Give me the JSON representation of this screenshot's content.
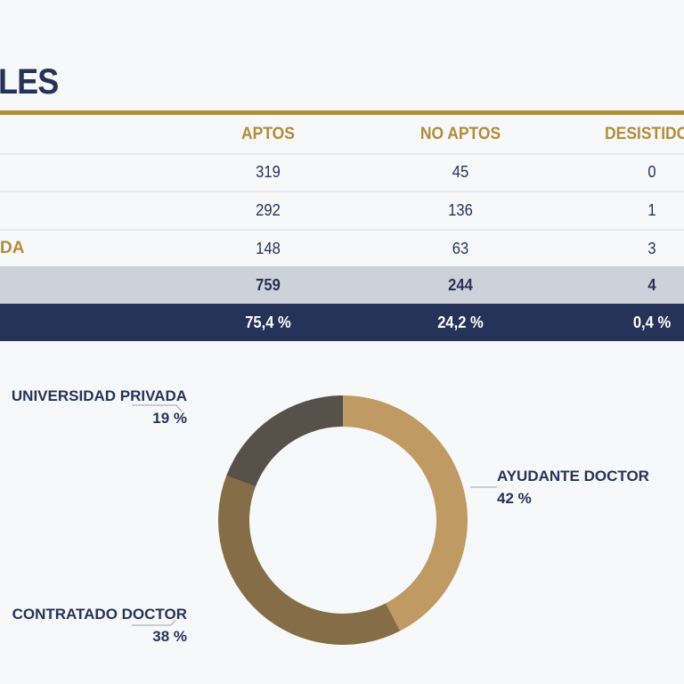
{
  "title": "LES",
  "table": {
    "headers": [
      "APTOS",
      "NO APTOS",
      "DESISTIDOS"
    ],
    "rows": [
      {
        "label": "",
        "values": [
          "319",
          "45",
          "0"
        ]
      },
      {
        "label": "",
        "values": [
          "292",
          "136",
          "1"
        ]
      },
      {
        "label": "DA",
        "values": [
          "148",
          "63",
          "3"
        ]
      }
    ],
    "total": [
      "759",
      "244",
      "4"
    ],
    "percent": [
      "75,4 %",
      "24,2 %",
      "0,4 %"
    ]
  },
  "chart_data": {
    "type": "pie",
    "donut": true,
    "start": "top",
    "direction": "clockwise",
    "slices": [
      {
        "label": "AYUDANTE DOCTOR",
        "value": 42,
        "value_label": "42 %",
        "color": "#C09A63"
      },
      {
        "label": "CONTRATADO DOCTOR",
        "value": 38,
        "value_label": "38 %",
        "color": "#856D47"
      },
      {
        "label": "UNIVERSIDAD PRIVADA",
        "value": 19,
        "value_label": "19 %",
        "color": "#58514A"
      }
    ]
  }
}
